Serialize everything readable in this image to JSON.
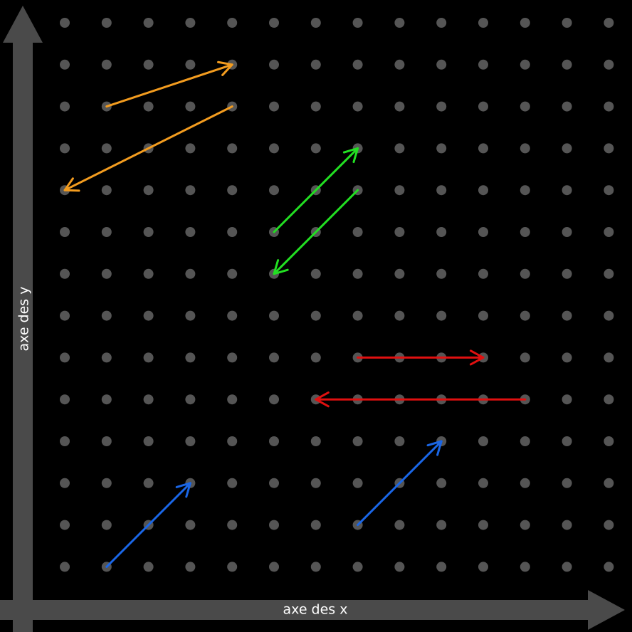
{
  "axes": {
    "y_label": "axe des y",
    "x_label": "axe des x"
  }
}
